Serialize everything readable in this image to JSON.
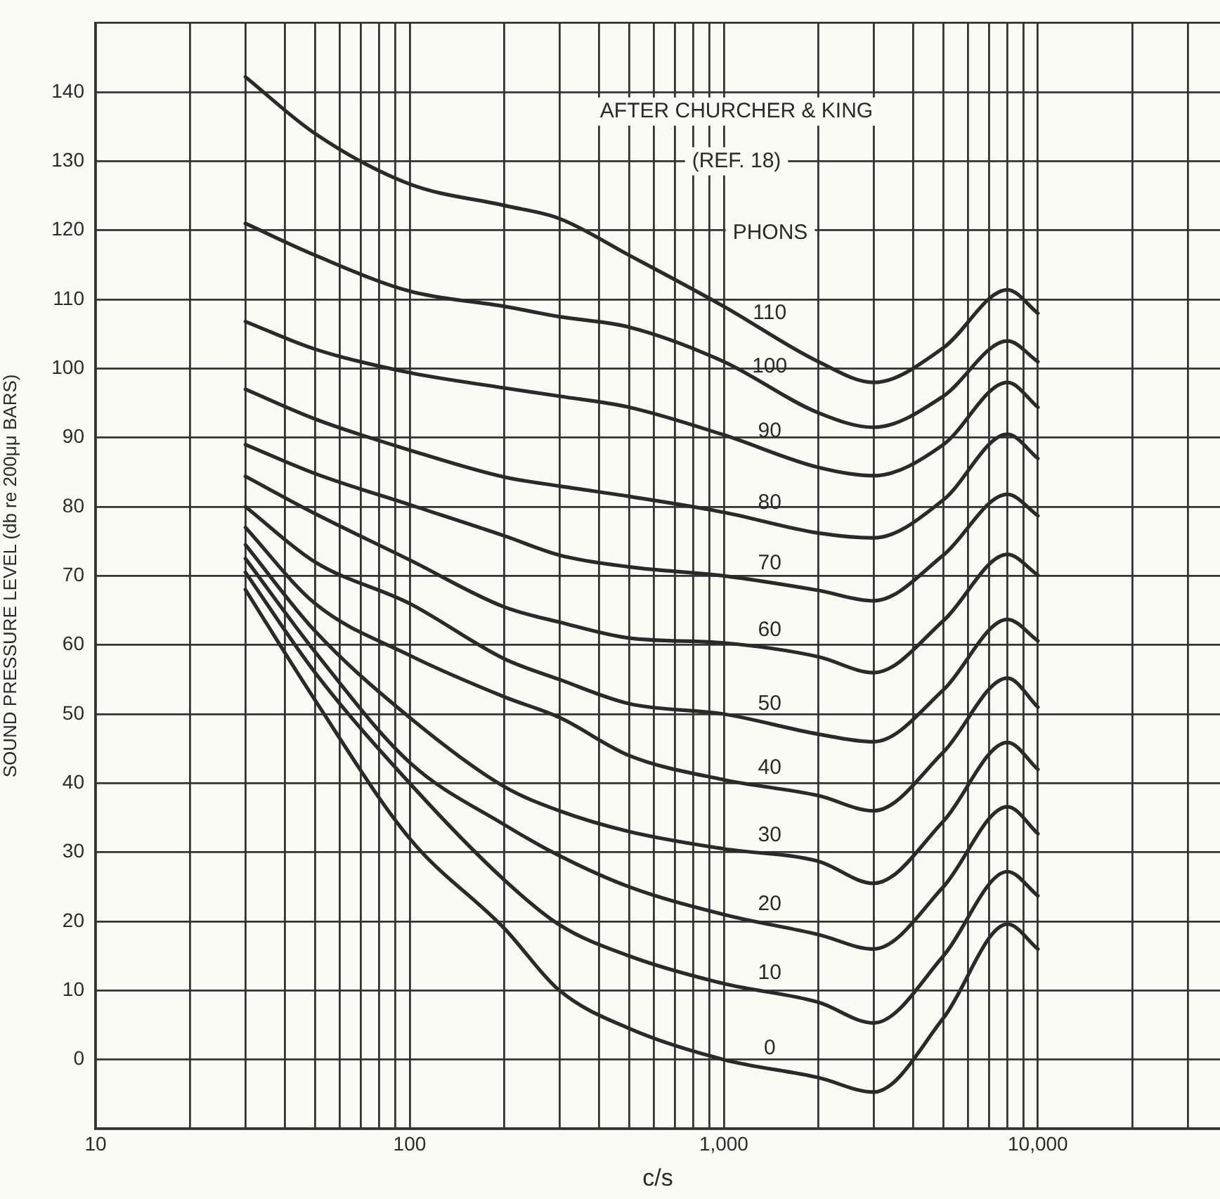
{
  "chart_data": {
    "type": "line",
    "xlabel": "c/s",
    "ylabel": "SOUND PRESSURE LEVEL (db re 200μμ BARS)",
    "annotations": [
      "AFTER CHURCHER & KING",
      "(REF. 18)",
      "PHONS"
    ],
    "x": [
      30,
      50,
      100,
      200,
      300,
      500,
      1000,
      2000,
      3000,
      5000,
      8000,
      10000
    ],
    "series": [
      {
        "name": "110",
        "color": "#2a2a2a",
        "values": [
          142.2,
          134,
          126.7,
          123.6,
          121.7,
          116.4,
          109,
          101,
          98,
          103,
          111.4,
          108
        ]
      },
      {
        "name": "100",
        "color": "#2a2a2a",
        "values": [
          121,
          116.4,
          111.2,
          109,
          107.5,
          106,
          101,
          93.6,
          91.5,
          96,
          104,
          101
        ]
      },
      {
        "name": "90",
        "color": "#2a2a2a",
        "values": [
          106.8,
          102.8,
          99.4,
          97.2,
          96,
          94.4,
          90.4,
          85.7,
          84.5,
          89,
          98,
          94.4
        ]
      },
      {
        "name": "80",
        "color": "#2a2a2a",
        "values": [
          97,
          92.7,
          88.2,
          84.3,
          83,
          81.5,
          79.2,
          76.2,
          75.5,
          81,
          90.5,
          87
        ]
      },
      {
        "name": "70",
        "color": "#2a2a2a",
        "values": [
          89,
          84.8,
          80.3,
          75.8,
          73,
          71.3,
          70,
          67.9,
          66.4,
          73,
          81.8,
          78.7
        ]
      },
      {
        "name": "60",
        "color": "#2a2a2a",
        "values": [
          84.4,
          79,
          72.3,
          65.5,
          63.3,
          61,
          60.3,
          58.3,
          56,
          63.5,
          73.1,
          70.1
        ]
      },
      {
        "name": "50",
        "color": "#2a2a2a",
        "values": [
          80,
          72,
          66,
          58,
          55,
          51.5,
          50,
          47.1,
          46,
          53.5,
          63.7,
          60.6
        ]
      },
      {
        "name": "40",
        "color": "#2a2a2a",
        "values": [
          77,
          66,
          58.5,
          52.5,
          49.5,
          44,
          40.5,
          38.2,
          36,
          44.5,
          55.2,
          51
        ]
      },
      {
        "name": "30",
        "color": "#2a2a2a",
        "values": [
          74.5,
          62,
          49.5,
          39.5,
          36,
          33,
          30.5,
          28.7,
          25.5,
          34.5,
          45.9,
          42
        ]
      },
      {
        "name": "20",
        "color": "#2a2a2a",
        "values": [
          72.5,
          59,
          43,
          34,
          29.5,
          25,
          21,
          18.1,
          16,
          25,
          36.6,
          32.7
        ]
      },
      {
        "name": "10",
        "color": "#2a2a2a",
        "values": [
          70.5,
          56,
          40,
          26,
          19.5,
          15,
          11,
          8.3,
          5.3,
          15,
          27.2,
          23.7
        ]
      },
      {
        "name": "0",
        "color": "#2a2a2a",
        "values": [
          68,
          52,
          32,
          19,
          10,
          4.5,
          0,
          -2.6,
          -4.7,
          6,
          19.6,
          16
        ]
      }
    ],
    "log": "x",
    "xlim": [
      10,
      38000
    ],
    "xticks": [
      10,
      {
        "value": 20,
        "label": null
      },
      {
        "value": 30,
        "label": null
      },
      {
        "value": 40,
        "label": null
      },
      {
        "value": 50,
        "label": null
      },
      {
        "value": 60,
        "label": null
      },
      {
        "value": 70,
        "label": null
      },
      {
        "value": 80,
        "label": null
      },
      {
        "value": 90,
        "label": null
      },
      100,
      {
        "value": 200,
        "label": null
      },
      {
        "value": 300,
        "label": null
      },
      {
        "value": 400,
        "label": null
      },
      {
        "value": 500,
        "label": null
      },
      {
        "value": 600,
        "label": null
      },
      {
        "value": 700,
        "label": null
      },
      {
        "value": 800,
        "label": null
      },
      {
        "value": 900,
        "label": null
      },
      {
        "value": 1000,
        "label": "1,000"
      },
      {
        "value": 2000,
        "label": null
      },
      {
        "value": 3000,
        "label": null
      },
      {
        "value": 4000,
        "label": null
      },
      {
        "value": 5000,
        "label": null
      },
      {
        "value": 6000,
        "label": null
      },
      {
        "value": 7000,
        "label": null
      },
      {
        "value": 8000,
        "label": null
      },
      {
        "value": 9000,
        "label": null
      },
      {
        "value": 10000,
        "label": "10,000"
      },
      {
        "value": 20000,
        "label": null
      },
      {
        "value": 30000,
        "label": null
      }
    ],
    "ylim": [
      -10,
      150
    ],
    "yticks": [
      {
        "value": -10,
        "label": null
      },
      0,
      10,
      20,
      30,
      40,
      50,
      60,
      70,
      80,
      90,
      100,
      110,
      120,
      130,
      140,
      {
        "value": 150,
        "label": null
      }
    ],
    "grid": true,
    "legend": false,
    "marker": "none",
    "line_style": "solid"
  }
}
